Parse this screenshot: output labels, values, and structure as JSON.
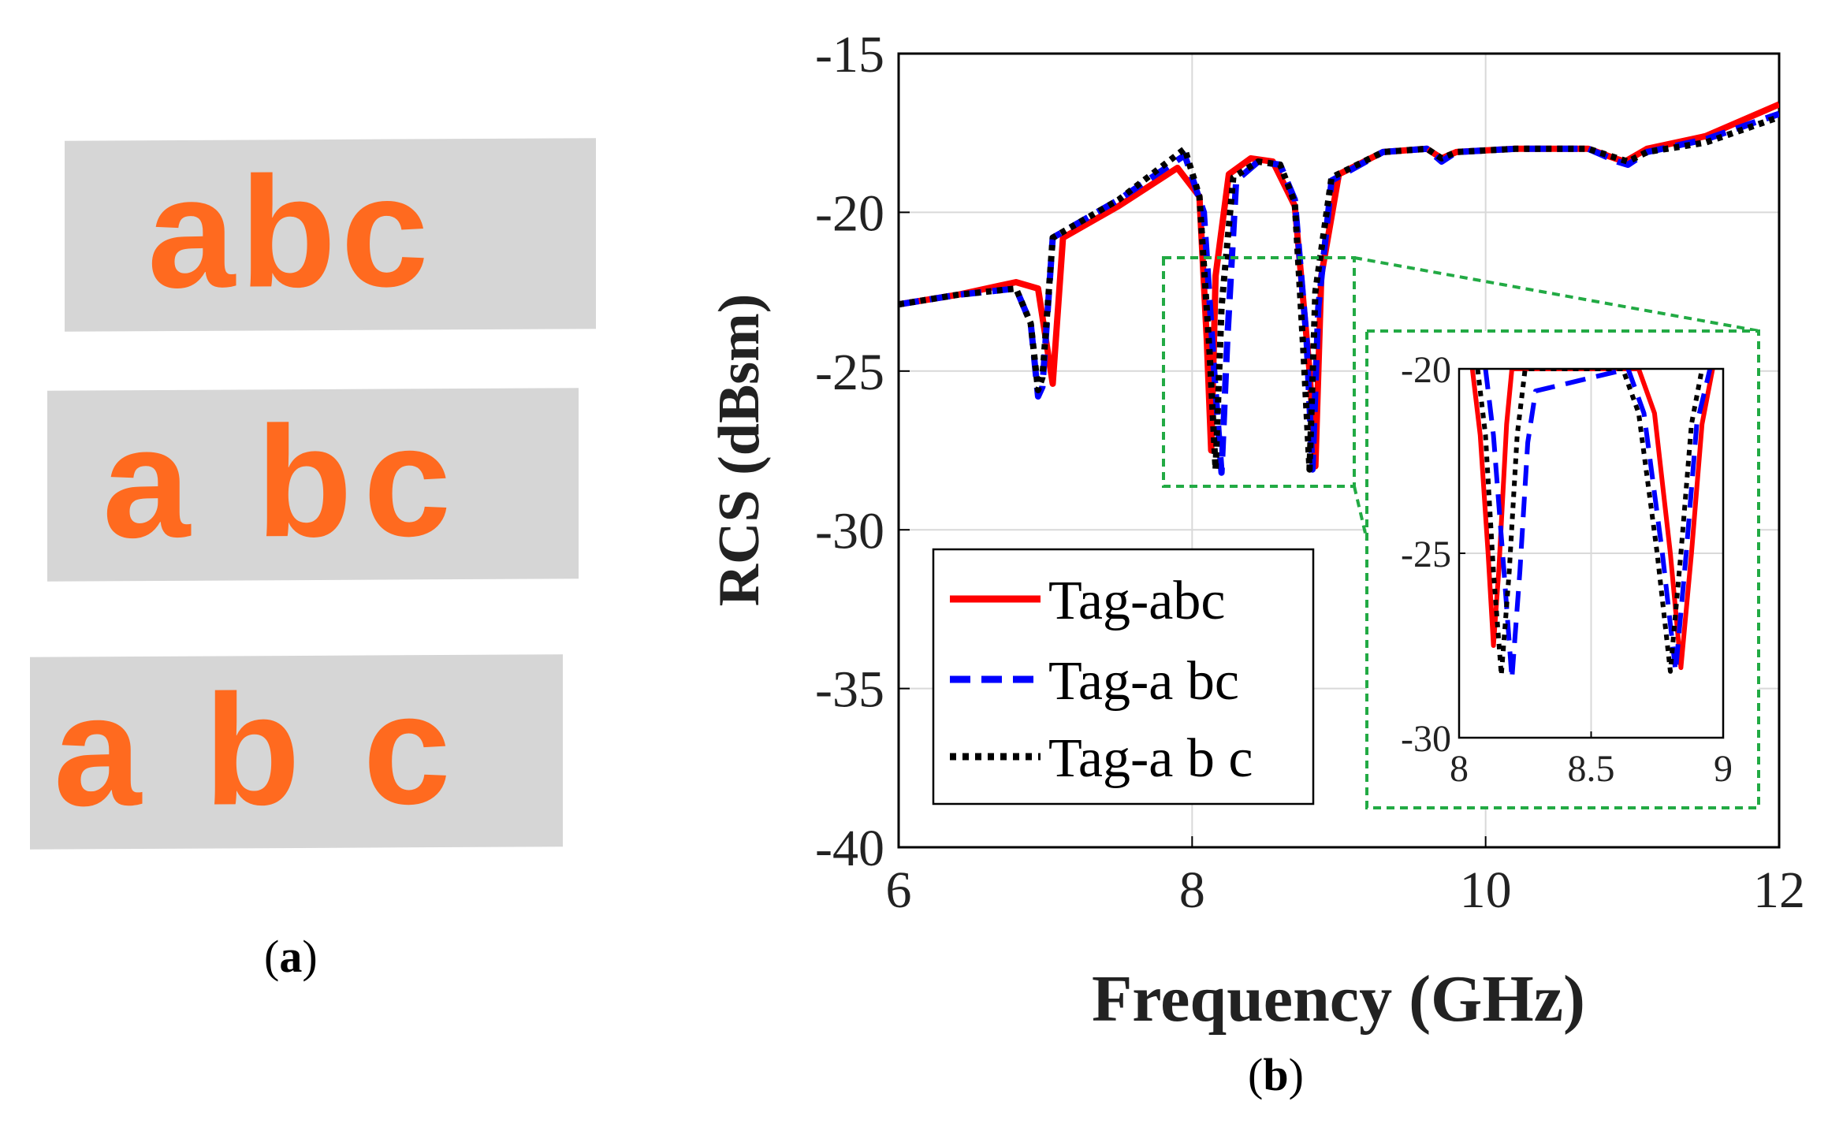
{
  "panel_a": {
    "caption_label": "a",
    "tags": [
      "abc",
      "a bc",
      "a b c"
    ],
    "text_color": "#ff6a1f",
    "panel_color": "#d6d6d6"
  },
  "panel_b": {
    "caption_label": "b"
  },
  "chart_data": [
    {
      "type": "line",
      "title": "",
      "xlabel": "Frequency (GHz)",
      "ylabel": "RCS (dBsm)",
      "xlim": [
        6,
        12
      ],
      "ylim": [
        -40,
        -15
      ],
      "xticks": [
        "6",
        "8",
        "10",
        "12"
      ],
      "yticks": [
        "-40",
        "-35",
        "-30",
        "-25",
        "-20",
        "-15"
      ],
      "grid": true,
      "legend": {
        "placement": "bottom-left",
        "entries": [
          "Tag-abc",
          "Tag-a bc",
          "Tag-a b c"
        ]
      },
      "series": [
        {
          "name": "Tag-abc",
          "color": "#ff0000",
          "style": "solid",
          "x": [
            6.0,
            6.4,
            6.8,
            6.95,
            7.02,
            7.05,
            7.12,
            7.5,
            7.9,
            8.05,
            8.1,
            8.13,
            8.16,
            8.25,
            8.4,
            8.55,
            8.7,
            8.8,
            8.84,
            8.88,
            9.0,
            9.3,
            9.6,
            9.7,
            9.8,
            10.2,
            10.7,
            10.88,
            10.95,
            11.1,
            11.5,
            12.0
          ],
          "y": [
            -22.9,
            -22.6,
            -22.2,
            -22.4,
            -24.5,
            -25.4,
            -20.8,
            -19.8,
            -18.6,
            -19.5,
            -24.0,
            -27.5,
            -22.0,
            -18.8,
            -18.3,
            -18.4,
            -19.8,
            -25.0,
            -28.0,
            -22.0,
            -18.8,
            -18.1,
            -18.0,
            -18.3,
            -18.1,
            -18.0,
            -18.0,
            -18.3,
            -18.4,
            -18.0,
            -17.6,
            -16.6
          ]
        },
        {
          "name": "Tag-a bc",
          "color": "#0000ff",
          "style": "dashed",
          "x": [
            6.0,
            6.4,
            6.8,
            6.9,
            6.95,
            6.98,
            7.05,
            7.5,
            7.95,
            8.08,
            8.15,
            8.2,
            8.24,
            8.3,
            8.45,
            8.6,
            8.7,
            8.78,
            8.82,
            8.86,
            8.95,
            9.3,
            9.6,
            9.7,
            9.8,
            10.2,
            10.7,
            10.9,
            10.97,
            11.1,
            11.5,
            12.0
          ],
          "y": [
            -22.9,
            -22.6,
            -22.4,
            -23.5,
            -25.8,
            -25.5,
            -20.8,
            -19.6,
            -18.2,
            -20.0,
            -25.0,
            -28.2,
            -24.0,
            -19.0,
            -18.4,
            -18.5,
            -19.6,
            -24.0,
            -28.1,
            -23.0,
            -19.0,
            -18.1,
            -18.0,
            -18.4,
            -18.1,
            -18.0,
            -18.0,
            -18.4,
            -18.5,
            -18.1,
            -17.7,
            -16.9
          ]
        },
        {
          "name": "Tag-a b c",
          "color": "#000000",
          "style": "dotted",
          "x": [
            6.0,
            6.4,
            6.8,
            6.9,
            6.95,
            6.98,
            7.05,
            7.5,
            7.95,
            8.05,
            8.12,
            8.16,
            8.2,
            8.28,
            8.45,
            8.6,
            8.7,
            8.76,
            8.8,
            8.84,
            8.95,
            9.3,
            9.6,
            9.7,
            9.8,
            10.2,
            10.7,
            10.9,
            10.97,
            11.1,
            11.5,
            12.0
          ],
          "y": [
            -22.9,
            -22.6,
            -22.4,
            -23.5,
            -25.6,
            -25.2,
            -20.8,
            -19.6,
            -18.0,
            -19.5,
            -24.5,
            -28.1,
            -23.0,
            -18.9,
            -18.4,
            -18.5,
            -19.7,
            -24.5,
            -28.1,
            -22.5,
            -18.9,
            -18.1,
            -18.0,
            -18.3,
            -18.1,
            -18.0,
            -18.0,
            -18.3,
            -18.4,
            -18.1,
            -17.8,
            -17.0
          ]
        }
      ]
    },
    {
      "type": "line",
      "title": "",
      "xlabel": "",
      "ylabel": "",
      "xlim": [
        8,
        9
      ],
      "ylim": [
        -30,
        -20
      ],
      "xticks": [
        "8",
        "8.5",
        "9"
      ],
      "yticks": [
        "-30",
        "-25",
        "-20"
      ],
      "grid": true,
      "series": [
        {
          "name": "Tag-abc",
          "color": "#ff0000",
          "style": "solid",
          "x": [
            8.05,
            8.08,
            8.11,
            8.13,
            8.15,
            8.18,
            8.2,
            8.68,
            8.74,
            8.8,
            8.84,
            8.88,
            8.92,
            8.96
          ],
          "y": [
            -20.0,
            -21.8,
            -25.0,
            -27.5,
            -25.5,
            -21.5,
            -20.0,
            -20.0,
            -21.2,
            -25.0,
            -28.1,
            -25.0,
            -21.5,
            -20.0
          ]
        },
        {
          "name": "Tag-a bc",
          "color": "#0000ff",
          "style": "dashed",
          "x": [
            8.1,
            8.13,
            8.17,
            8.2,
            8.23,
            8.26,
            8.29,
            8.64,
            8.7,
            8.77,
            8.82,
            8.86,
            8.9,
            8.95
          ],
          "y": [
            -20.0,
            -21.8,
            -25.5,
            -28.4,
            -25.5,
            -22.0,
            -20.6,
            -20.0,
            -21.2,
            -25.0,
            -28.2,
            -25.0,
            -21.5,
            -20.0
          ]
        },
        {
          "name": "Tag-a b c",
          "color": "#000000",
          "style": "dotted",
          "x": [
            8.07,
            8.1,
            8.13,
            8.16,
            8.19,
            8.22,
            8.25,
            8.62,
            8.68,
            8.75,
            8.8,
            8.84,
            8.88,
            8.92
          ],
          "y": [
            -20.0,
            -21.8,
            -25.5,
            -28.3,
            -25.5,
            -21.8,
            -20.0,
            -20.0,
            -21.2,
            -25.0,
            -28.2,
            -25.0,
            -21.5,
            -20.0
          ]
        }
      ]
    }
  ]
}
